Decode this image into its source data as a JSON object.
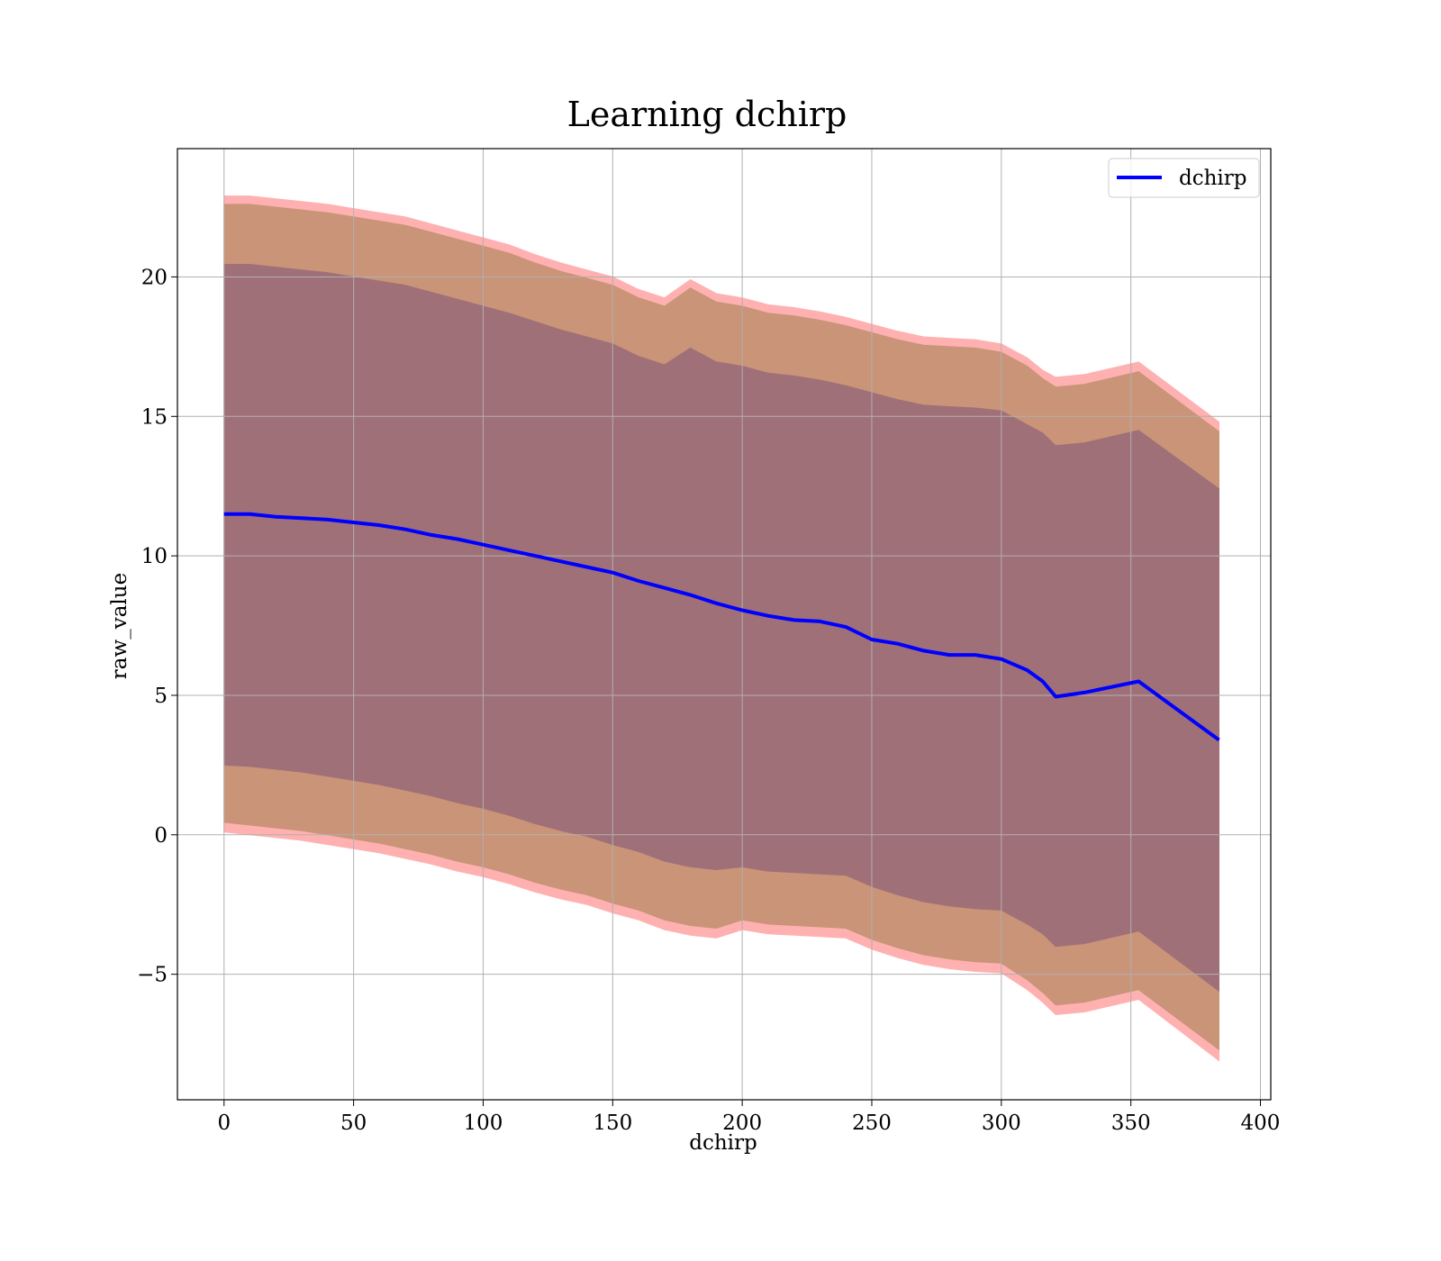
{
  "chart_data": {
    "type": "line",
    "title": "Learning dchirp",
    "xlabel": "dchirp",
    "ylabel": "raw_value",
    "xlim": [
      -18,
      404
    ],
    "ylim": [
      -9.5,
      24.6
    ],
    "xticks": [
      0,
      50,
      100,
      150,
      200,
      250,
      300,
      350,
      400
    ],
    "yticks": [
      -5,
      0,
      5,
      10,
      15,
      20
    ],
    "ytick_labels": [
      "−5",
      "0",
      "5",
      "10",
      "15",
      "20"
    ],
    "grid": true,
    "legend": {
      "position": "top-right",
      "entries": [
        "dchirp"
      ]
    },
    "colors": {
      "line": "#0000ff",
      "band_outer": "#ffb0b0",
      "band_middle": "#c99478",
      "band_inner": "#a07078",
      "grid": "#b0b0b0"
    },
    "x": [
      0,
      10,
      20,
      30,
      40,
      50,
      60,
      70,
      80,
      90,
      100,
      110,
      120,
      130,
      140,
      150,
      160,
      170,
      180,
      190,
      200,
      210,
      220,
      230,
      240,
      250,
      260,
      270,
      280,
      290,
      300,
      310,
      316,
      321,
      332,
      353,
      384
    ],
    "series": [
      {
        "name": "dchirp",
        "values": [
          11.5,
          11.5,
          11.4,
          11.35,
          11.3,
          11.2,
          11.1,
          10.95,
          10.75,
          10.6,
          10.4,
          10.2,
          10.0,
          9.8,
          9.6,
          9.4,
          9.1,
          8.85,
          8.6,
          8.3,
          8.05,
          7.85,
          7.7,
          7.65,
          7.45,
          7.0,
          6.85,
          6.6,
          6.45,
          6.45,
          6.3,
          5.9,
          5.5,
          4.95,
          5.1,
          5.5,
          3.4
        ]
      }
    ],
    "bands": [
      {
        "upper": [
          22.9,
          22.9,
          22.8,
          22.7,
          22.6,
          22.45,
          22.3,
          22.15,
          21.9,
          21.65,
          21.4,
          21.15,
          20.8,
          20.5,
          20.25,
          20.0,
          19.55,
          19.25,
          19.9,
          19.4,
          19.25,
          19.0,
          18.9,
          18.75,
          18.55,
          18.3,
          18.05,
          17.85,
          17.8,
          17.75,
          17.6,
          17.1,
          16.65,
          16.4,
          16.5,
          16.95,
          14.8
        ],
        "lower": [
          0.1,
          0.0,
          -0.1,
          -0.2,
          -0.35,
          -0.5,
          -0.65,
          -0.85,
          -1.05,
          -1.3,
          -1.5,
          -1.75,
          -2.05,
          -2.3,
          -2.5,
          -2.8,
          -3.05,
          -3.4,
          -3.6,
          -3.7,
          -3.4,
          -3.55,
          -3.6,
          -3.65,
          -3.7,
          -4.1,
          -4.4,
          -4.65,
          -4.8,
          -4.9,
          -4.95,
          -5.55,
          -6.0,
          -6.45,
          -6.35,
          -5.9,
          -8.1
        ]
      },
      {
        "upper": [
          22.6,
          22.6,
          22.5,
          22.4,
          22.3,
          22.15,
          22.0,
          21.85,
          21.6,
          21.35,
          21.1,
          20.85,
          20.5,
          20.2,
          19.95,
          19.7,
          19.25,
          18.95,
          19.6,
          19.1,
          18.95,
          18.7,
          18.6,
          18.45,
          18.25,
          18.0,
          17.75,
          17.55,
          17.5,
          17.45,
          17.3,
          16.8,
          16.35,
          16.05,
          16.15,
          16.6,
          14.45
        ],
        "lower": [
          0.45,
          0.35,
          0.25,
          0.15,
          0.0,
          -0.15,
          -0.3,
          -0.5,
          -0.7,
          -0.95,
          -1.15,
          -1.4,
          -1.7,
          -1.95,
          -2.15,
          -2.45,
          -2.7,
          -3.05,
          -3.25,
          -3.35,
          -3.05,
          -3.2,
          -3.25,
          -3.3,
          -3.35,
          -3.75,
          -4.05,
          -4.3,
          -4.45,
          -4.55,
          -4.6,
          -5.2,
          -5.65,
          -6.1,
          -6.0,
          -5.55,
          -7.7
        ]
      },
      {
        "upper": [
          20.45,
          20.45,
          20.35,
          20.25,
          20.15,
          20.0,
          19.85,
          19.7,
          19.45,
          19.2,
          18.95,
          18.7,
          18.4,
          18.1,
          17.85,
          17.6,
          17.15,
          16.85,
          17.45,
          16.95,
          16.8,
          16.55,
          16.45,
          16.3,
          16.1,
          15.85,
          15.6,
          15.4,
          15.35,
          15.3,
          15.2,
          14.7,
          14.4,
          13.95,
          14.05,
          14.5,
          12.4
        ],
        "lower": [
          2.5,
          2.45,
          2.35,
          2.25,
          2.1,
          1.95,
          1.8,
          1.6,
          1.4,
          1.15,
          0.95,
          0.7,
          0.4,
          0.15,
          -0.05,
          -0.35,
          -0.6,
          -0.95,
          -1.15,
          -1.25,
          -1.15,
          -1.3,
          -1.35,
          -1.4,
          -1.45,
          -1.85,
          -2.15,
          -2.4,
          -2.55,
          -2.65,
          -2.7,
          -3.2,
          -3.55,
          -4.0,
          -3.9,
          -3.45,
          -5.6
        ]
      }
    ]
  }
}
